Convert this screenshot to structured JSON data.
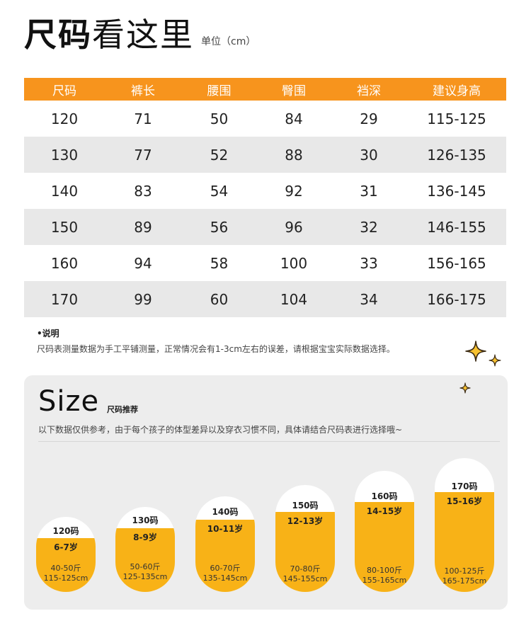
{
  "header": {
    "title_bold": "尺码",
    "title_rest": "看这里",
    "unit": "单位（cm）"
  },
  "table": {
    "columns": [
      "尺码",
      "裤长",
      "腰围",
      "臀围",
      "裆深",
      "建议身高"
    ],
    "rows": [
      [
        "120",
        "71",
        "50",
        "84",
        "29",
        "115-125"
      ],
      [
        "130",
        "77",
        "52",
        "88",
        "30",
        "126-135"
      ],
      [
        "140",
        "83",
        "54",
        "92",
        "31",
        "136-145"
      ],
      [
        "150",
        "89",
        "56",
        "96",
        "32",
        "146-155"
      ],
      [
        "160",
        "94",
        "58",
        "100",
        "33",
        "156-165"
      ],
      [
        "170",
        "99",
        "60",
        "104",
        "34",
        "166-175"
      ]
    ]
  },
  "note": {
    "heading": "•说明",
    "text": "尺码表测量数据为手工平铺测量，正常情况会有1-3cm左右的误差，请根据宝宝实际数据选择。"
  },
  "size_panel": {
    "title": "Size",
    "subtitle": "尺码推荐",
    "description": "以下数据仅供参考，由于每个孩子的体型差异以及穿衣习惯不同，具体请结合尺码表进行选择哦~",
    "items": [
      {
        "size": "120码",
        "age": "6-7岁",
        "weight": "40-50斤",
        "height": "115-125cm"
      },
      {
        "size": "130码",
        "age": "8-9岁",
        "weight": "50-60斤",
        "height": "125-135cm"
      },
      {
        "size": "140码",
        "age": "10-11岁",
        "weight": "60-70斤",
        "height": "135-145cm"
      },
      {
        "size": "150码",
        "age": "12-13岁",
        "weight": "70-80斤",
        "height": "145-155cm"
      },
      {
        "size": "160码",
        "age": "14-15岁",
        "weight": "80-100斤",
        "height": "155-165cm"
      },
      {
        "size": "170码",
        "age": "15-16岁",
        "weight": "100-125斤",
        "height": "165-175cm"
      }
    ]
  },
  "colors": {
    "accent": "#f7941d",
    "pill_fill": "#f8b217",
    "row_alt": "#e8e8e8",
    "panel": "#ededed"
  }
}
